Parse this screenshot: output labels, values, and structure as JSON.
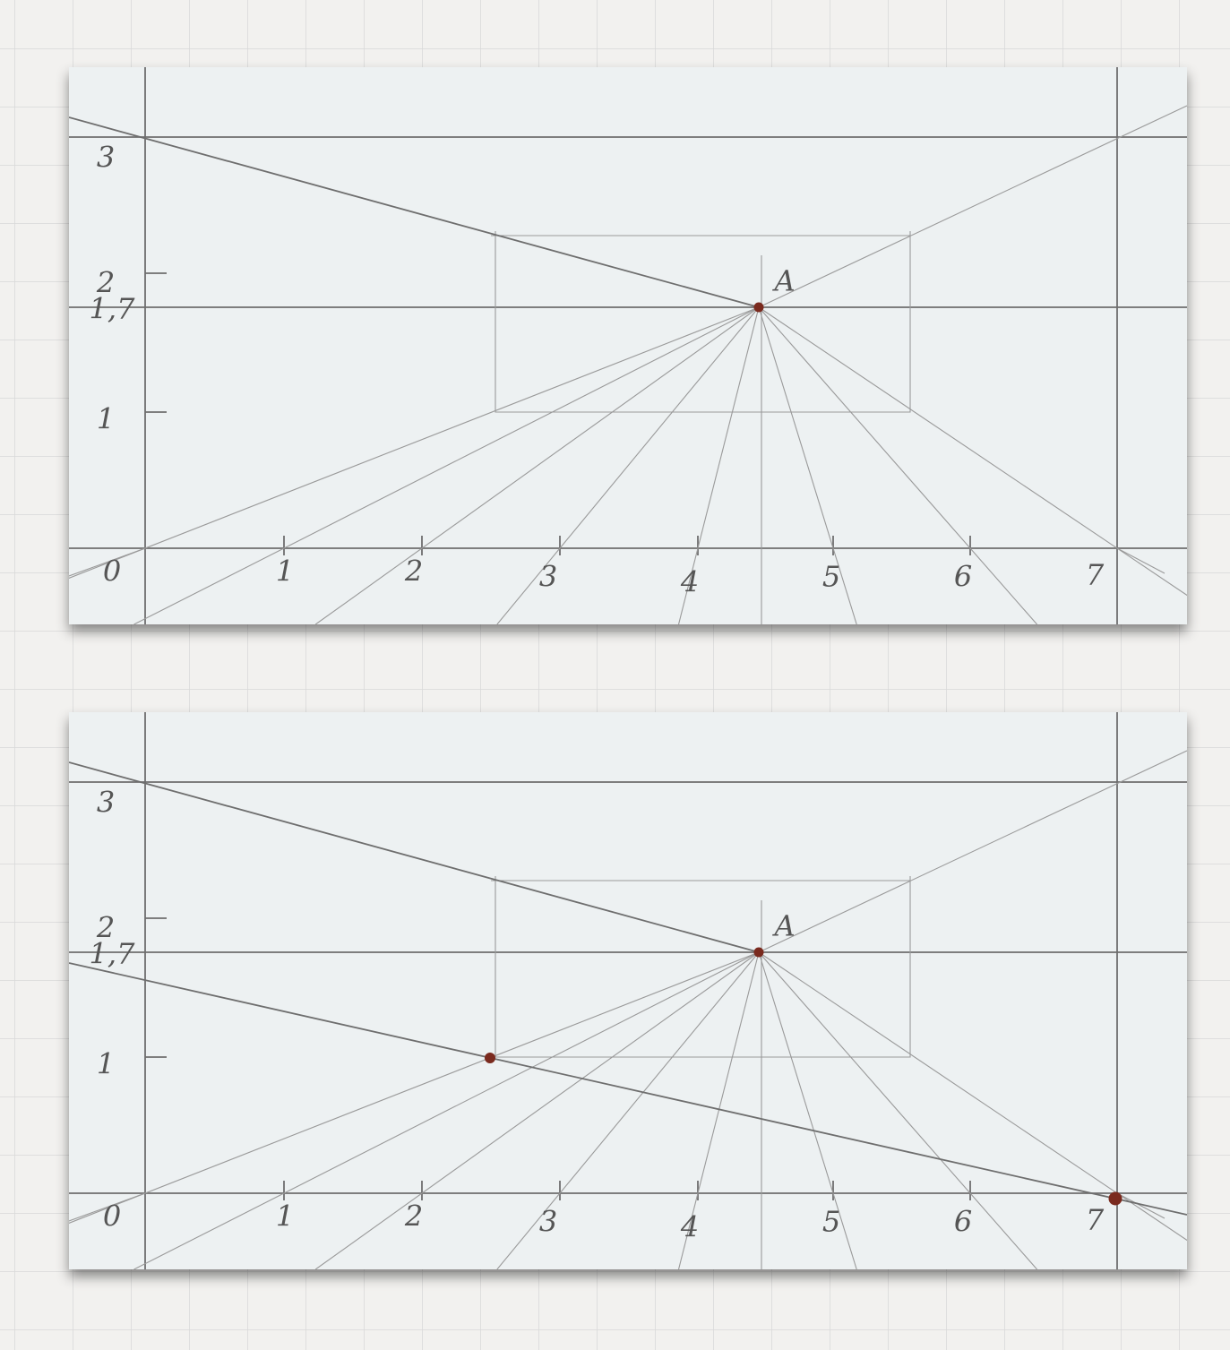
{
  "panels": [
    {
      "y_labels": [
        "3",
        "2",
        "1,7",
        "1"
      ],
      "x_labels": [
        "0",
        "1",
        "2",
        "3",
        "4",
        "5",
        "6",
        "7"
      ],
      "point_label": "A"
    },
    {
      "y_labels": [
        "3",
        "2",
        "1,7",
        "1"
      ],
      "x_labels": [
        "0",
        "1",
        "2",
        "3",
        "4",
        "5",
        "6",
        "7"
      ],
      "point_label": "A"
    }
  ]
}
